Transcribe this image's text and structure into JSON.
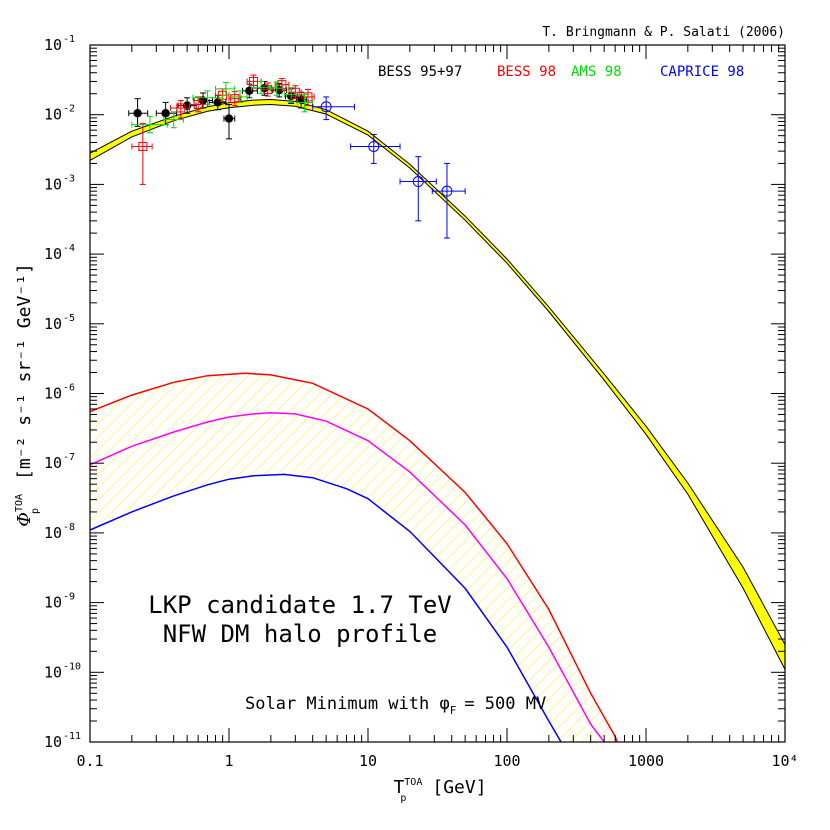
{
  "chart_data": {
    "type": "line",
    "title": "",
    "credit": "T. Bringmann & P. Salati (2006)",
    "xlabel": {
      "base": "T",
      "super": "TOA",
      "sub": "p",
      "unit": "[GeV]"
    },
    "ylabel": {
      "base": "Φ",
      "super": "TOA",
      "sub": "p",
      "unit": "[m⁻² s⁻¹ sr⁻¹ GeV⁻¹]"
    },
    "x_scale": "log",
    "y_scale": "log",
    "xlim": [
      0.1,
      10000
    ],
    "ylim": [
      1e-11,
      0.1
    ],
    "x_ticks": [
      {
        "value": 0.1,
        "label": "0.1"
      },
      {
        "value": 1,
        "label": "1"
      },
      {
        "value": 10,
        "label": "10"
      },
      {
        "value": 100,
        "label": "100"
      },
      {
        "value": 1000,
        "label": "1000"
      },
      {
        "value": 10000,
        "label": "10⁴"
      }
    ],
    "y_ticks": [
      {
        "value": 1e-11,
        "mant": "10",
        "exp": "-11"
      },
      {
        "value": 1e-10,
        "mant": "10",
        "exp": "-10"
      },
      {
        "value": 1e-09,
        "mant": "10",
        "exp": "-9"
      },
      {
        "value": 1e-08,
        "mant": "10",
        "exp": "-8"
      },
      {
        "value": 1e-07,
        "mant": "10",
        "exp": "-7"
      },
      {
        "value": 1e-06,
        "mant": "10",
        "exp": "-6"
      },
      {
        "value": 1e-05,
        "mant": "10",
        "exp": "-5"
      },
      {
        "value": 0.0001,
        "mant": "10",
        "exp": "-4"
      },
      {
        "value": 0.001,
        "mant": "10",
        "exp": "-3"
      },
      {
        "value": 0.01,
        "mant": "10",
        "exp": "-2"
      },
      {
        "value": 0.1,
        "mant": "10",
        "exp": "-1"
      }
    ],
    "grid": false,
    "legend_position": "top",
    "legend": [
      {
        "label": "BESS 95+97",
        "color": "#000000"
      },
      {
        "label": "BESS 98",
        "color": "#ff0000"
      },
      {
        "label": "AMS 98",
        "color": "#00dd00"
      },
      {
        "label": "CAPRICE 98",
        "color": "#0000ff"
      }
    ],
    "annotations": [
      "LKP candidate 1.7 TeV",
      "NFW DM halo profile",
      "Solar Minimum with φ",
      "F",
      "= 500 MV"
    ],
    "background_band": {
      "fill": "#ffff00",
      "upper": [
        [
          0.1,
          0.0028
        ],
        [
          0.2,
          0.0058
        ],
        [
          0.4,
          0.0095
        ],
        [
          0.7,
          0.013
        ],
        [
          1,
          0.0148
        ],
        [
          1.5,
          0.0162
        ],
        [
          2,
          0.0165
        ],
        [
          3,
          0.0155
        ],
        [
          5,
          0.0118
        ],
        [
          10,
          0.0058
        ],
        [
          20,
          0.00195
        ],
        [
          50,
          0.00035
        ],
        [
          100,
          8.5e-05
        ],
        [
          200,
          1.75e-05
        ],
        [
          500,
          1.9e-06
        ],
        [
          1000,
          3.4e-07
        ],
        [
          2000,
          5.2e-08
        ],
        [
          5000,
          3.2e-09
        ],
        [
          10000,
          2.5e-10
        ]
      ],
      "lower": [
        [
          0.1,
          0.0022
        ],
        [
          0.2,
          0.0048
        ],
        [
          0.4,
          0.0082
        ],
        [
          0.7,
          0.0112
        ],
        [
          1,
          0.0126
        ],
        [
          1.5,
          0.0137
        ],
        [
          2,
          0.014
        ],
        [
          3,
          0.0132
        ],
        [
          5,
          0.0102
        ],
        [
          10,
          0.0051
        ],
        [
          20,
          0.00172
        ],
        [
          50,
          0.000305
        ],
        [
          100,
          7.4e-05
        ],
        [
          200,
          1.5e-05
        ],
        [
          500,
          1.55e-06
        ],
        [
          1000,
          2.6e-07
        ],
        [
          2000,
          3.6e-08
        ],
        [
          5000,
          1.6e-09
        ],
        [
          10000,
          1.1e-10
        ]
      ]
    },
    "signal_band_hatch": "#ffee55",
    "series": [
      {
        "color": "#ff0000",
        "values": [
          [
            0.1,
            5.5e-07
          ],
          [
            0.2,
            9.5e-07
          ],
          [
            0.4,
            1.45e-06
          ],
          [
            0.7,
            1.8e-06
          ],
          [
            1.3,
            1.95e-06
          ],
          [
            2,
            1.85e-06
          ],
          [
            4,
            1.4e-06
          ],
          [
            10,
            6e-07
          ],
          [
            20,
            2.1e-07
          ],
          [
            50,
            3.8e-08
          ],
          [
            100,
            7e-09
          ],
          [
            200,
            8e-10
          ],
          [
            400,
            5e-11
          ],
          [
            600,
            1.2e-11
          ],
          [
            700,
            5e-12
          ]
        ]
      },
      {
        "color": "#ff00ff",
        "values": [
          [
            0.1,
            9.5e-08
          ],
          [
            0.2,
            1.75e-07
          ],
          [
            0.4,
            2.8e-07
          ],
          [
            0.7,
            3.9e-07
          ],
          [
            1,
            4.6e-07
          ],
          [
            1.5,
            5.1e-07
          ],
          [
            2,
            5.3e-07
          ],
          [
            3,
            5.1e-07
          ],
          [
            5,
            4e-07
          ],
          [
            10,
            2.1e-07
          ],
          [
            20,
            7.5e-08
          ],
          [
            50,
            1.3e-08
          ],
          [
            100,
            2.2e-09
          ],
          [
            200,
            2.3e-10
          ],
          [
            400,
            1.8e-11
          ],
          [
            500,
            1e-11
          ],
          [
            600,
            5e-12
          ]
        ]
      },
      {
        "color": "#0000ff",
        "values": [
          [
            0.1,
            1.1e-08
          ],
          [
            0.2,
            2e-08
          ],
          [
            0.4,
            3.4e-08
          ],
          [
            0.7,
            4.9e-08
          ],
          [
            1,
            5.9e-08
          ],
          [
            1.5,
            6.6e-08
          ],
          [
            2.5,
            6.9e-08
          ],
          [
            4,
            6.2e-08
          ],
          [
            7,
            4.3e-08
          ],
          [
            10,
            3.1e-08
          ],
          [
            20,
            1.05e-08
          ],
          [
            50,
            1.6e-09
          ],
          [
            100,
            2.3e-10
          ],
          [
            200,
            2e-11
          ],
          [
            300,
            5e-12
          ]
        ]
      }
    ],
    "data_sets": [
      {
        "name": "BESS 95+97",
        "color": "#000000",
        "marker": "filled-circle",
        "points": [
          {
            "x": 0.22,
            "y": 0.0105,
            "xlo": 0.19,
            "xhi": 0.26,
            "ylo": 0.0068,
            "yhi": 0.017
          },
          {
            "x": 0.35,
            "y": 0.0105,
            "xlo": 0.3,
            "xhi": 0.42,
            "ylo": 0.0072,
            "yhi": 0.015
          },
          {
            "x": 0.5,
            "y": 0.0135,
            "xlo": 0.43,
            "xhi": 0.58,
            "ylo": 0.0105,
            "yhi": 0.0175
          },
          {
            "x": 0.65,
            "y": 0.016,
            "xlo": 0.56,
            "xhi": 0.76,
            "ylo": 0.0125,
            "yhi": 0.0205
          },
          {
            "x": 0.83,
            "y": 0.015,
            "xlo": 0.72,
            "xhi": 0.95,
            "ylo": 0.0118,
            "yhi": 0.019
          },
          {
            "x": 1.0,
            "y": 0.0088,
            "xlo": 0.92,
            "xhi": 1.1,
            "ylo": 0.0045,
            "yhi": 0.014
          },
          {
            "x": 1.4,
            "y": 0.022,
            "xlo": 1.25,
            "xhi": 1.6,
            "ylo": 0.0175,
            "yhi": 0.0275
          },
          {
            "x": 1.8,
            "y": 0.024,
            "xlo": 1.6,
            "xhi": 2.0,
            "ylo": 0.019,
            "yhi": 0.03
          },
          {
            "x": 2.3,
            "y": 0.0225,
            "xlo": 2.05,
            "xhi": 2.6,
            "ylo": 0.018,
            "yhi": 0.028
          },
          {
            "x": 2.8,
            "y": 0.0185,
            "xlo": 2.55,
            "xhi": 3.1,
            "ylo": 0.0145,
            "yhi": 0.0235
          },
          {
            "x": 3.3,
            "y": 0.0165,
            "xlo": 3.05,
            "xhi": 3.6,
            "ylo": 0.0125,
            "yhi": 0.021
          }
        ]
      },
      {
        "name": "BESS 98",
        "color": "#ff0000",
        "marker": "open-square-cross",
        "points": [
          {
            "x": 0.24,
            "y": 0.0035,
            "xlo": 0.2,
            "xhi": 0.28,
            "ylo": 0.001,
            "yhi": 0.0075
          },
          {
            "x": 0.45,
            "y": 0.0125,
            "xlo": 0.38,
            "xhi": 0.52,
            "ylo": 0.009,
            "yhi": 0.016
          },
          {
            "x": 0.6,
            "y": 0.014,
            "xlo": 0.52,
            "xhi": 0.7,
            "ylo": 0.011,
            "yhi": 0.018
          },
          {
            "x": 0.9,
            "y": 0.019,
            "xlo": 0.8,
            "xhi": 1.0,
            "ylo": 0.0155,
            "yhi": 0.0235
          },
          {
            "x": 1.1,
            "y": 0.017,
            "xlo": 1.0,
            "xhi": 1.22,
            "ylo": 0.0135,
            "yhi": 0.0215
          },
          {
            "x": 1.5,
            "y": 0.03,
            "xlo": 1.35,
            "xhi": 1.7,
            "ylo": 0.024,
            "yhi": 0.037
          },
          {
            "x": 1.9,
            "y": 0.023,
            "xlo": 1.7,
            "xhi": 2.1,
            "ylo": 0.0185,
            "yhi": 0.0285
          },
          {
            "x": 2.4,
            "y": 0.027,
            "xlo": 2.15,
            "xhi": 2.7,
            "ylo": 0.022,
            "yhi": 0.033
          },
          {
            "x": 3.0,
            "y": 0.021,
            "xlo": 2.7,
            "xhi": 3.3,
            "ylo": 0.017,
            "yhi": 0.026
          },
          {
            "x": 3.7,
            "y": 0.018,
            "xlo": 3.35,
            "xhi": 4.1,
            "ylo": 0.0135,
            "yhi": 0.023
          }
        ]
      },
      {
        "name": "AMS 98",
        "color": "#00dd00",
        "marker": "cross",
        "points": [
          {
            "x": 0.27,
            "y": 0.0072,
            "xlo": 0.2,
            "xhi": 0.36,
            "ylo": 0.0055,
            "yhi": 0.0095
          },
          {
            "x": 0.4,
            "y": 0.0085,
            "xlo": 0.34,
            "xhi": 0.47,
            "ylo": 0.0065,
            "yhi": 0.011
          },
          {
            "x": 0.7,
            "y": 0.0175,
            "xlo": 0.55,
            "xhi": 0.9,
            "ylo": 0.014,
            "yhi": 0.022
          },
          {
            "x": 0.95,
            "y": 0.0235,
            "xlo": 0.8,
            "xhi": 1.1,
            "ylo": 0.019,
            "yhi": 0.029
          },
          {
            "x": 1.2,
            "y": 0.018,
            "xlo": 1.05,
            "xhi": 1.35,
            "ylo": 0.015,
            "yhi": 0.022
          },
          {
            "x": 1.7,
            "y": 0.0245,
            "xlo": 1.45,
            "xhi": 2.0,
            "ylo": 0.02,
            "yhi": 0.03
          },
          {
            "x": 2.2,
            "y": 0.024,
            "xlo": 1.95,
            "xhi": 2.45,
            "ylo": 0.019,
            "yhi": 0.0295
          },
          {
            "x": 2.8,
            "y": 0.0195,
            "xlo": 2.5,
            "xhi": 3.2,
            "ylo": 0.015,
            "yhi": 0.0245
          },
          {
            "x": 3.5,
            "y": 0.015,
            "xlo": 3.1,
            "xhi": 4.0,
            "ylo": 0.011,
            "yhi": 0.0195
          }
        ]
      },
      {
        "name": "CAPRICE 98",
        "color": "#0000ff",
        "marker": "open-circle",
        "points": [
          {
            "x": 5.0,
            "y": 0.013,
            "xlo": 4.0,
            "xhi": 8.0,
            "ylo": 0.0085,
            "yhi": 0.018
          },
          {
            "x": 11,
            "y": 0.0035,
            "xlo": 7.5,
            "xhi": 17,
            "ylo": 0.002,
            "yhi": 0.0052
          },
          {
            "x": 23,
            "y": 0.0011,
            "xlo": 17,
            "xhi": 31,
            "ylo": 0.0003,
            "yhi": 0.0025
          },
          {
            "x": 37,
            "y": 0.0008,
            "xlo": 29,
            "xhi": 50,
            "ylo": 0.00017,
            "yhi": 0.002
          }
        ]
      }
    ]
  }
}
